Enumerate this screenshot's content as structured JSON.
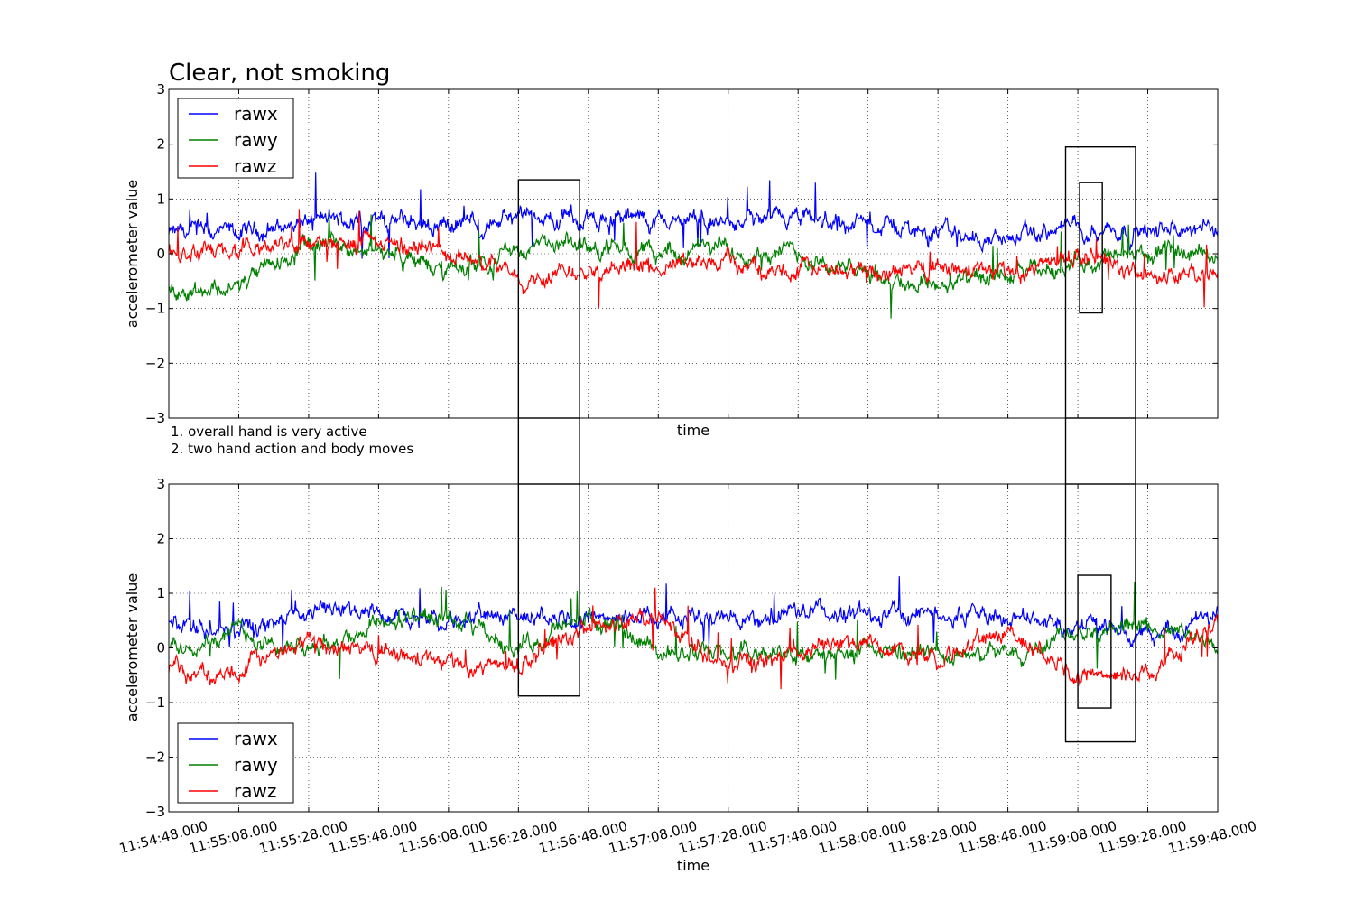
{
  "chart_data": [
    {
      "type": "line",
      "title": "Clear, not smoking",
      "xlabel": "time",
      "ylabel": "accelerometer value",
      "ylim": [
        -3,
        3
      ],
      "yticks": [
        -3,
        -2,
        -1,
        0,
        1,
        2,
        3
      ],
      "ytick_labels": [
        "−3",
        "−2",
        "−1",
        "0",
        "1",
        "2",
        "3"
      ],
      "xlim": [
        "11:54:48.000",
        "11:59:48.000"
      ],
      "grid": true,
      "legend": {
        "placement": "top-left"
      },
      "annotations": [
        "1. overall hand is very active",
        "2. two hand action and body moves"
      ],
      "highlight_boxes": [
        {
          "x0": "11:56:28.000",
          "x1": "11:56:45.500",
          "y0": -3,
          "y1": 1.35
        },
        {
          "x0": "11:59:04.500",
          "x1": "11:59:24.500",
          "y0": -3,
          "y1": 1.95
        },
        {
          "x0": "11:59:08.500",
          "x1": "11:59:15.000",
          "y0": -1.08,
          "y1": 1.3
        }
      ],
      "series": [
        {
          "name": "rawx",
          "color": "#0000ff",
          "x": [
            "11:54:48.000",
            "11:55:08.000",
            "11:55:28.000",
            "11:55:48.000",
            "11:56:08.000",
            "11:56:28.000",
            "11:56:48.000",
            "11:57:08.000",
            "11:57:28.000",
            "11:57:48.000",
            "11:58:08.000",
            "11:58:28.000",
            "11:58:48.000",
            "11:59:08.000",
            "11:59:28.000",
            "11:59:48.000"
          ],
          "y": [
            0.35,
            0.35,
            0.6,
            0.6,
            0.55,
            0.6,
            0.65,
            0.6,
            0.55,
            0.6,
            0.55,
            0.4,
            0.25,
            0.5,
            0.4,
            0.45
          ]
        },
        {
          "name": "rawy",
          "color": "#008000",
          "x": [
            "11:54:48.000",
            "11:55:08.000",
            "11:55:28.000",
            "11:55:48.000",
            "11:56:08.000",
            "11:56:28.000",
            "11:56:48.000",
            "11:57:08.000",
            "11:57:28.000",
            "11:57:48.000",
            "11:58:08.000",
            "11:58:28.000",
            "11:58:48.000",
            "11:59:08.000",
            "11:59:28.000",
            "11:59:48.000"
          ],
          "y": [
            -0.65,
            -0.6,
            0.15,
            0.1,
            -0.35,
            0.1,
            0.15,
            0.0,
            0.1,
            0.0,
            -0.4,
            -0.55,
            -0.45,
            -0.15,
            0.0,
            0.0
          ]
        },
        {
          "name": "rawz",
          "color": "#ff0000",
          "x": [
            "11:54:48.000",
            "11:55:08.000",
            "11:55:28.000",
            "11:55:48.000",
            "11:56:08.000",
            "11:56:28.000",
            "11:56:48.000",
            "11:57:08.000",
            "11:57:28.000",
            "11:57:48.000",
            "11:58:08.000",
            "11:58:28.000",
            "11:58:48.000",
            "11:59:08.000",
            "11:59:28.000",
            "11:59:48.000"
          ],
          "y": [
            0.0,
            0.0,
            0.2,
            0.15,
            0.05,
            -0.45,
            -0.2,
            -0.25,
            -0.15,
            -0.3,
            -0.3,
            -0.3,
            -0.35,
            0.0,
            -0.4,
            -0.45
          ]
        }
      ]
    },
    {
      "type": "line",
      "title": "",
      "xlabel": "time",
      "ylabel": "accelerometer value",
      "ylim": [
        -3,
        3
      ],
      "yticks": [
        -3,
        -2,
        -1,
        0,
        1,
        2,
        3
      ],
      "ytick_labels": [
        "−3",
        "−2",
        "−1",
        "0",
        "1",
        "2",
        "3"
      ],
      "xlim": [
        "11:54:48.000",
        "11:59:48.000"
      ],
      "xtick_labels": [
        "11:54:48.000",
        "11:55:08.000",
        "11:55:28.000",
        "11:55:48.000",
        "11:56:08.000",
        "11:56:28.000",
        "11:56:48.000",
        "11:57:08.000",
        "11:57:28.000",
        "11:57:48.000",
        "11:58:08.000",
        "11:58:28.000",
        "11:58:48.000",
        "11:59:08.000",
        "11:59:28.000",
        "11:59:48.000"
      ],
      "grid": true,
      "legend": {
        "placement": "bottom-left"
      },
      "highlight_boxes": [
        {
          "x0": "11:56:28.000",
          "x1": "11:56:45.500",
          "y0": -0.88,
          "y1": 3
        },
        {
          "x0": "11:59:04.500",
          "x1": "11:59:24.500",
          "y0": -1.72,
          "y1": 3
        },
        {
          "x0": "11:59:08.000",
          "x1": "11:59:17.500",
          "y0": -1.1,
          "y1": 1.33
        }
      ],
      "series": [
        {
          "name": "rawx",
          "color": "#0000ff",
          "x": [
            "11:54:48.000",
            "11:55:08.000",
            "11:55:28.000",
            "11:55:48.000",
            "11:56:08.000",
            "11:56:28.000",
            "11:56:48.000",
            "11:57:08.000",
            "11:57:28.000",
            "11:57:48.000",
            "11:58:08.000",
            "11:58:28.000",
            "11:58:48.000",
            "11:59:08.000",
            "11:59:28.000",
            "11:59:48.000"
          ],
          "y": [
            0.45,
            0.3,
            0.65,
            0.65,
            0.55,
            0.6,
            0.6,
            0.6,
            0.5,
            0.65,
            0.6,
            0.6,
            0.6,
            0.4,
            0.2,
            0.55
          ]
        },
        {
          "name": "rawy",
          "color": "#008000",
          "x": [
            "11:54:48.000",
            "11:55:08.000",
            "11:55:28.000",
            "11:55:48.000",
            "11:56:08.000",
            "11:56:28.000",
            "11:56:48.000",
            "11:57:08.000",
            "11:57:28.000",
            "11:57:48.000",
            "11:58:08.000",
            "11:58:28.000",
            "11:58:48.000",
            "11:59:08.000",
            "11:59:28.000",
            "11:59:48.000"
          ],
          "y": [
            0.05,
            0.3,
            -0.1,
            0.5,
            0.5,
            0.0,
            0.55,
            -0.05,
            -0.15,
            -0.15,
            -0.1,
            -0.1,
            -0.15,
            0.4,
            0.4,
            0.05
          ]
        },
        {
          "name": "rawz",
          "color": "#ff0000",
          "x": [
            "11:54:48.000",
            "11:55:08.000",
            "11:55:28.000",
            "11:55:48.000",
            "11:56:08.000",
            "11:56:28.000",
            "11:56:48.000",
            "11:57:08.000",
            "11:57:28.000",
            "11:57:48.000",
            "11:58:08.000",
            "11:58:28.000",
            "11:58:48.000",
            "11:59:08.000",
            "11:59:28.000",
            "11:59:48.000"
          ],
          "y": [
            -0.45,
            -0.4,
            0.15,
            -0.1,
            -0.3,
            -0.3,
            0.4,
            0.5,
            -0.35,
            -0.1,
            0.1,
            -0.15,
            0.3,
            -0.45,
            -0.45,
            0.45
          ]
        }
      ]
    }
  ]
}
